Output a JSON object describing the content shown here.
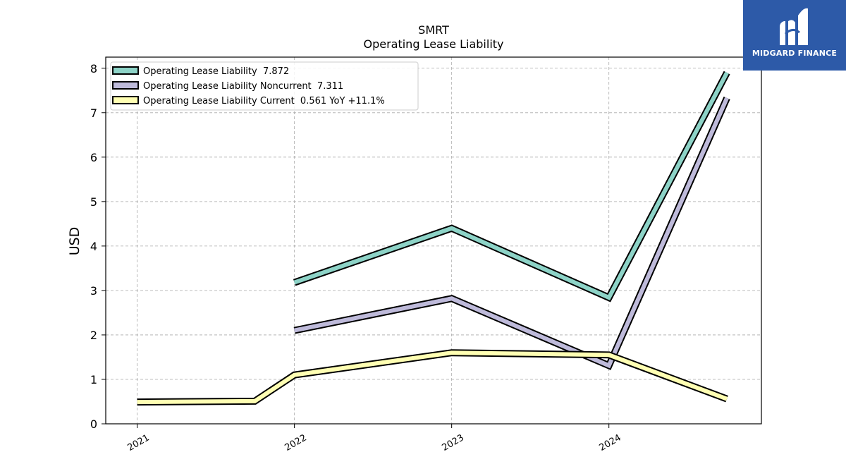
{
  "chart_data": {
    "type": "line",
    "title": "SMRT",
    "subtitle": "Operating Lease Liability",
    "xlabel": "",
    "ylabel": "USD",
    "ylim": [
      0,
      8.25
    ],
    "yticks": [
      0,
      1,
      2,
      3,
      4,
      5,
      6,
      7,
      8
    ],
    "xticks": [
      "2021",
      "2022",
      "2023",
      "2024"
    ],
    "xlim": [
      "2020-10-20",
      "2024-12-20"
    ],
    "grid": true,
    "legend_position": "top-left",
    "series": [
      {
        "name": "Operating Lease Liability",
        "legend_label": "Operating Lease Liability  7.872",
        "color": "#8dd3c7",
        "points": [
          {
            "x": "2022-01-01",
            "y": 3.18
          },
          {
            "x": "2023-01-01",
            "y": 4.4
          },
          {
            "x": "2024-01-01",
            "y": 2.84
          },
          {
            "x": "2024-10-01",
            "y": 7.9
          }
        ]
      },
      {
        "name": "Operating Lease Liability Noncurrent",
        "legend_label": "Operating Lease Liability Noncurrent  7.311",
        "color": "#bebada",
        "points": [
          {
            "x": "2022-01-01",
            "y": 2.1
          },
          {
            "x": "2023-01-01",
            "y": 2.82
          },
          {
            "x": "2024-01-01",
            "y": 1.31
          },
          {
            "x": "2024-10-01",
            "y": 7.33
          }
        ]
      },
      {
        "name": "Operating Lease Liability Current",
        "legend_label": "Operating Lease Liability Current  0.561 YoY +11.1%",
        "color": "#ffffb3",
        "points": [
          {
            "x": "2021-01-01",
            "y": 0.49
          },
          {
            "x": "2021-10-01",
            "y": 0.51
          },
          {
            "x": "2022-01-01",
            "y": 1.1
          },
          {
            "x": "2023-01-01",
            "y": 1.6
          },
          {
            "x": "2024-01-01",
            "y": 1.55
          },
          {
            "x": "2024-10-01",
            "y": 0.56
          }
        ]
      }
    ]
  },
  "brand": {
    "name": "MIDGARD FINANCE",
    "color": "#2d5aa8"
  }
}
